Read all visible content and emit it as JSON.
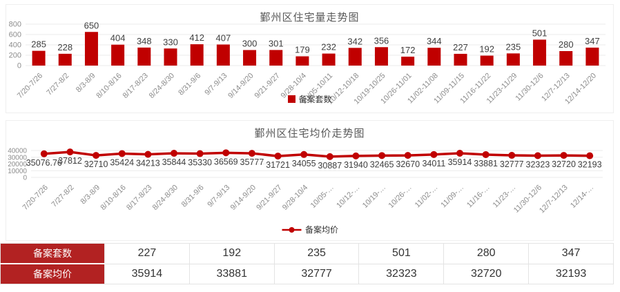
{
  "colors": {
    "series": "#c00000",
    "table_header_bg": "#b22222",
    "title_text": "#595959",
    "axis_text": "#8c8c8c",
    "value_label_text": "#404040",
    "gridline": "#ebebeb",
    "panel_border": "#efefef"
  },
  "chart_data": [
    {
      "type": "bar",
      "title": "鄞州区住宅量走势图",
      "legend": "备案套数",
      "legend_position": "bottom",
      "grid": true,
      "ylim": [
        0,
        800
      ],
      "yticks": [
        0,
        200,
        400,
        600,
        800
      ],
      "categories": [
        "7/20-7/26",
        "7/27-8/2",
        "8/3-8/9",
        "8/10-8/16",
        "8/17-8/23",
        "8/24-8/30",
        "8/31-9/6",
        "9/7-9/13",
        "9/14-9/20",
        "9/21-9/27",
        "9/28-10/4",
        "10/05-10/11",
        "10/12-10/18",
        "10/19-10/25",
        "10/26-11/01",
        "11/02-11/08",
        "11/09-11/15",
        "11/16-11/22",
        "11/23-11/29",
        "11/30-12/6",
        "12/7-12/13",
        "12/14-12/20"
      ],
      "values": [
        285,
        228,
        650,
        404,
        348,
        330,
        412,
        407,
        300,
        301,
        179,
        232,
        342,
        356,
        172,
        344,
        227,
        192,
        235,
        501,
        280,
        347
      ]
    },
    {
      "type": "line",
      "title": "鄞州区住宅均价走势图",
      "legend": "备案均价",
      "legend_position": "bottom",
      "grid": true,
      "ylim": [
        0,
        40000
      ],
      "yticks": [
        0,
        10000,
        20000,
        30000,
        40000
      ],
      "categories": [
        "7/20-7/26",
        "7/27-8/2",
        "8/3-8/9",
        "8/10-8/16",
        "8/17-8/23",
        "8/24-8/30",
        "8/31-9/6",
        "9/7-9/13",
        "9/14-9/20",
        "9/21-9/27",
        "9/28-10/4",
        "10/05-10/11",
        "10/12-10/18",
        "10/19-10/25",
        "10/26-11/01",
        "11/02-11/08",
        "11/09-11/15",
        "11/16-11/22",
        "11/23-11/29",
        "11/30-12/6",
        "12/7-12/13",
        "12/14-12/20"
      ],
      "tick_labels": [
        "7/20-7/26",
        "7/27-8/2",
        "8/3-8/9",
        "8/10-8/16",
        "8/17-8/23",
        "8/24-8/30",
        "8/31-9/6",
        "9/7-9/13",
        "9/14-9/20",
        "9/21-9/27",
        "9/28-10/4",
        "10/05-…",
        "10/12-…",
        "10/19-…",
        "10/26-…",
        "11/02-…",
        "11/09-…",
        "11/16-…",
        "11/23-…",
        "11/30-12/6",
        "12/7-12/13",
        "12/14-…"
      ],
      "values": [
        35076.76,
        37812,
        32710,
        35424,
        34213,
        35844,
        35330,
        36569,
        35777,
        31721,
        34055,
        30887,
        31940,
        32465,
        32670,
        34011,
        35914,
        33881,
        32777,
        32323,
        32720,
        32193
      ]
    }
  ],
  "table": {
    "rows": [
      {
        "header": "备案套数",
        "values": [
          "227",
          "192",
          "235",
          "501",
          "280",
          "347"
        ]
      },
      {
        "header": "备案均价",
        "values": [
          "35914",
          "33881",
          "32777",
          "32323",
          "32720",
          "32193"
        ]
      }
    ]
  }
}
